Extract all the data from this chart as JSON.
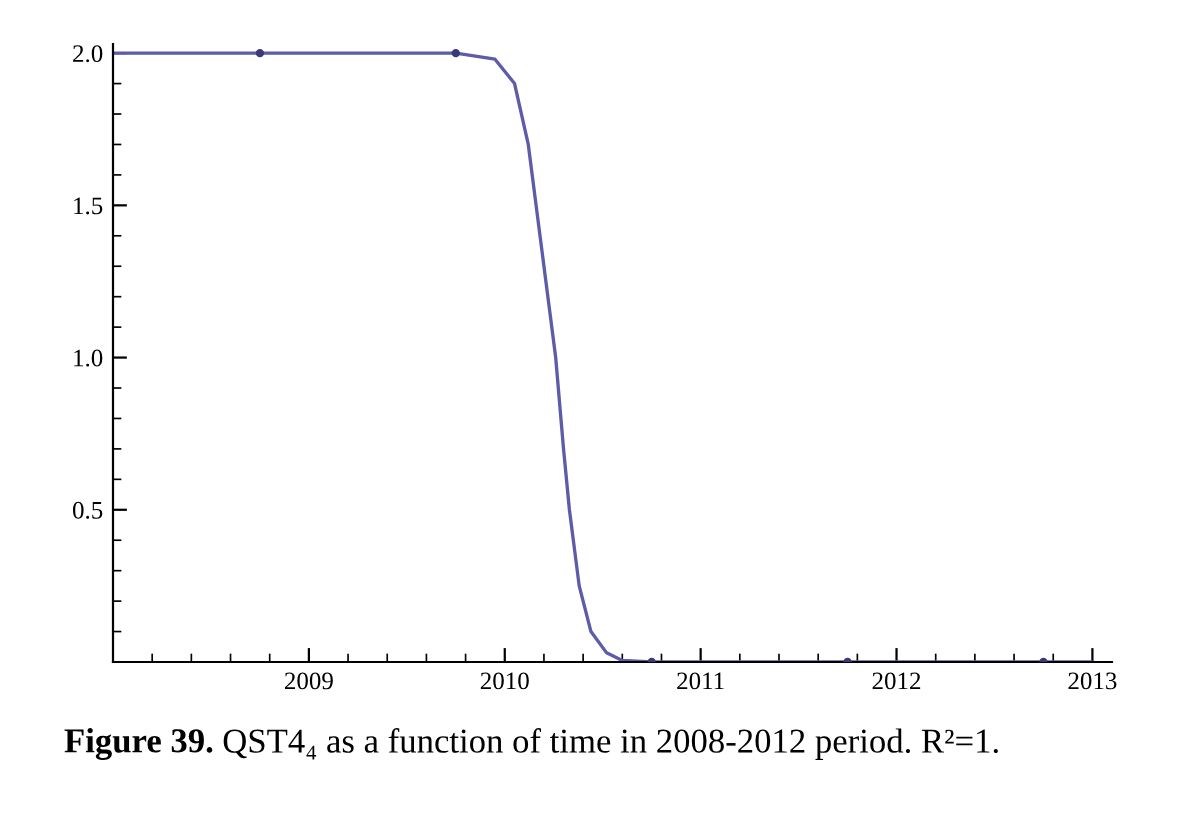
{
  "chart_data": {
    "type": "scatter",
    "series": [
      {
        "type": "scatter",
        "color": "#3a3a78",
        "x": [
          2008.75,
          2009.75,
          2010.75,
          2011.75,
          2012.75
        ],
        "values": [
          2,
          2,
          0,
          0,
          0
        ]
      },
      {
        "type": "line",
        "color": "#5c5ca8",
        "x": [
          2008.0,
          2009.75,
          2009.95,
          2010.05,
          2010.12,
          2010.16,
          2010.22,
          2010.26,
          2010.3,
          2010.33,
          2010.38,
          2010.44,
          2010.52,
          2010.6,
          2010.75,
          2013.0
        ],
        "values": [
          2,
          2,
          1.98,
          1.9,
          1.7,
          1.5,
          1.2,
          1.0,
          0.7,
          0.5,
          0.25,
          0.1,
          0.03,
          0.005,
          0,
          0
        ]
      }
    ],
    "xlim": [
      2008,
      2013.1
    ],
    "ylim": [
      0,
      2.03
    ],
    "xticks": [
      2009,
      2010,
      2011,
      2012,
      2013
    ],
    "yticks": [
      0.5,
      {
        "value": 1,
        "label": "1.0"
      },
      1.5,
      {
        "value": 2,
        "label": "2.0"
      }
    ],
    "grid": false,
    "legend": false,
    "annotations": [
      "Figure 39.",
      "QST4₄ as a function of time in 2008-2012 period. R²=1."
    ]
  }
}
